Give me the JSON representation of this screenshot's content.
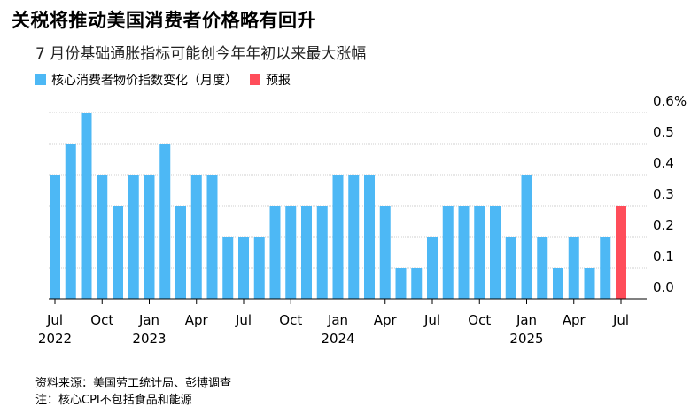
{
  "title": "关税将推动美国消费者价格略有回升",
  "subtitle": "7 月份基础通胀指标可能创今年年初以来最大涨幅",
  "legend": [
    {
      "label": "核心消费者物价指数变化（月度）",
      "color": "#4db8f5"
    },
    {
      "label": "预报",
      "color": "#ff4d5a"
    }
  ],
  "footnote": {
    "source": "资料来源：美国劳工统计局、彭博调查",
    "note": "注：核心CPI不包括食品和能源"
  },
  "chart_data": {
    "type": "bar",
    "title": "关税将推动美国消费者价格略有回升",
    "subtitle": "7 月份基础通胀指标可能创今年年初以来最大涨幅",
    "unit": "%",
    "ylim": [
      0,
      0.6
    ],
    "yticks": [
      {
        "value": 0.6,
        "label": "0.6%"
      },
      {
        "value": 0.5,
        "label": "0.5"
      },
      {
        "value": 0.4,
        "label": "0.4"
      },
      {
        "value": 0.3,
        "label": "0.3"
      },
      {
        "value": 0.2,
        "label": "0.2"
      },
      {
        "value": 0.1,
        "label": "0.1"
      },
      {
        "value": 0.0,
        "label": "0.0"
      }
    ],
    "grid": true,
    "categories": [
      "2022-07",
      "2022-08",
      "2022-09",
      "2022-10",
      "2022-11",
      "2022-12",
      "2023-01",
      "2023-02",
      "2023-03",
      "2023-04",
      "2023-05",
      "2023-06",
      "2023-07",
      "2023-08",
      "2023-09",
      "2023-10",
      "2023-11",
      "2023-12",
      "2024-01",
      "2024-02",
      "2024-03",
      "2024-04",
      "2024-05",
      "2024-06",
      "2024-07",
      "2024-08",
      "2024-09",
      "2024-10",
      "2024-11",
      "2024-12",
      "2025-01",
      "2025-02",
      "2025-03",
      "2025-04",
      "2025-05",
      "2025-06",
      "2025-07"
    ],
    "series": [
      {
        "name": "核心消费者物价指数变化（月度）",
        "color": "#4db8f5",
        "values": [
          0.4,
          0.5,
          0.6,
          0.4,
          0.3,
          0.4,
          0.4,
          0.5,
          0.3,
          0.4,
          0.4,
          0.2,
          0.2,
          0.2,
          0.3,
          0.3,
          0.3,
          0.3,
          0.4,
          0.4,
          0.4,
          0.3,
          0.1,
          0.1,
          0.2,
          0.3,
          0.3,
          0.3,
          0.3,
          0.2,
          0.4,
          0.2,
          0.1,
          0.2,
          0.1,
          0.2,
          null
        ]
      },
      {
        "name": "预报",
        "color": "#ff4d5a",
        "values": [
          null,
          null,
          null,
          null,
          null,
          null,
          null,
          null,
          null,
          null,
          null,
          null,
          null,
          null,
          null,
          null,
          null,
          null,
          null,
          null,
          null,
          null,
          null,
          null,
          null,
          null,
          null,
          null,
          null,
          null,
          null,
          null,
          null,
          null,
          null,
          null,
          0.3
        ]
      }
    ],
    "xticks": [
      {
        "index": 0,
        "label": "Jul",
        "year": "2022"
      },
      {
        "index": 3,
        "label": "Oct"
      },
      {
        "index": 6,
        "label": "Jan",
        "year": "2023"
      },
      {
        "index": 9,
        "label": "Apr"
      },
      {
        "index": 12,
        "label": "Jul"
      },
      {
        "index": 15,
        "label": "Oct"
      },
      {
        "index": 18,
        "label": "Jan",
        "year": "2024"
      },
      {
        "index": 21,
        "label": "Apr"
      },
      {
        "index": 24,
        "label": "Jul"
      },
      {
        "index": 27,
        "label": "Oct"
      },
      {
        "index": 30,
        "label": "Jan",
        "year": "2025"
      },
      {
        "index": 33,
        "label": "Apr"
      },
      {
        "index": 36,
        "label": "Jul"
      }
    ]
  }
}
